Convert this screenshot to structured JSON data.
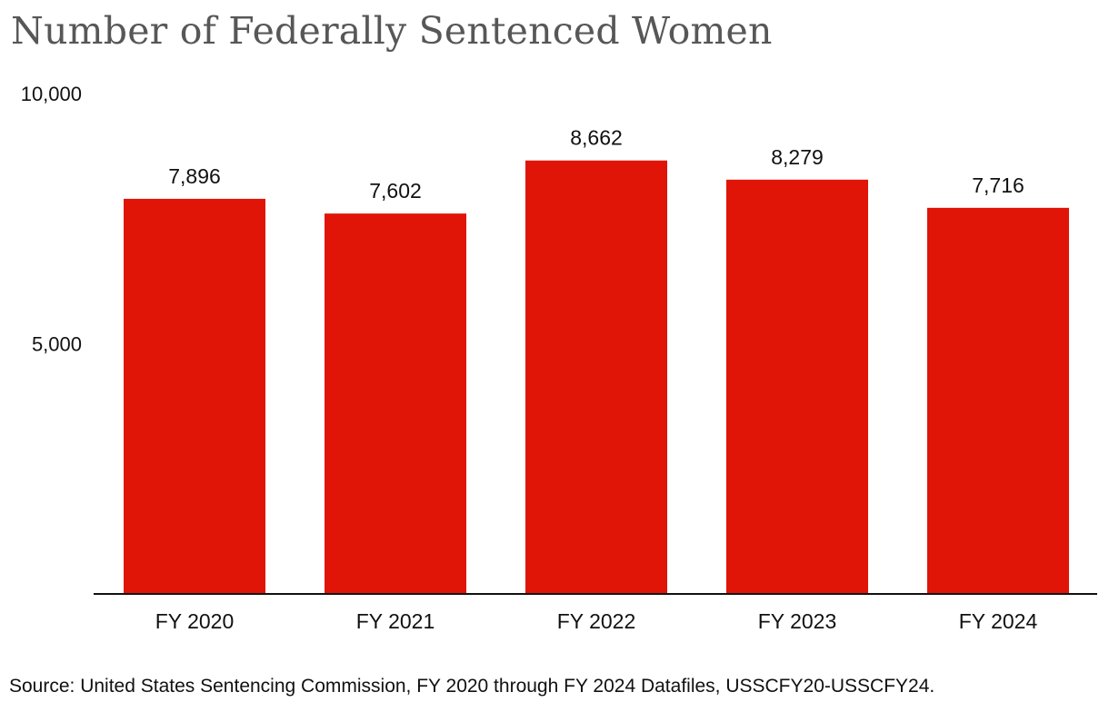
{
  "chart_data": {
    "type": "bar",
    "title": "Number of Federally Sentenced Women",
    "categories": [
      "FY 2020",
      "FY 2021",
      "FY 2022",
      "FY 2023",
      "FY 2024"
    ],
    "values": [
      7896,
      7602,
      8662,
      8279,
      7716
    ],
    "value_labels": [
      "7,896",
      "7,602",
      "8,662",
      "8,279",
      "7,716"
    ],
    "ylim": [
      0,
      10000
    ],
    "yticks": [
      5000,
      10000
    ],
    "ytick_labels": [
      "5,000",
      "10,000"
    ],
    "xlabel": "",
    "ylabel": "",
    "grid": false,
    "bar_color": "#e01508"
  },
  "source": "Source: United States Sentencing Commission, FY 2020 through FY 2024 Datafiles, USSCFY20-USSCFY24."
}
